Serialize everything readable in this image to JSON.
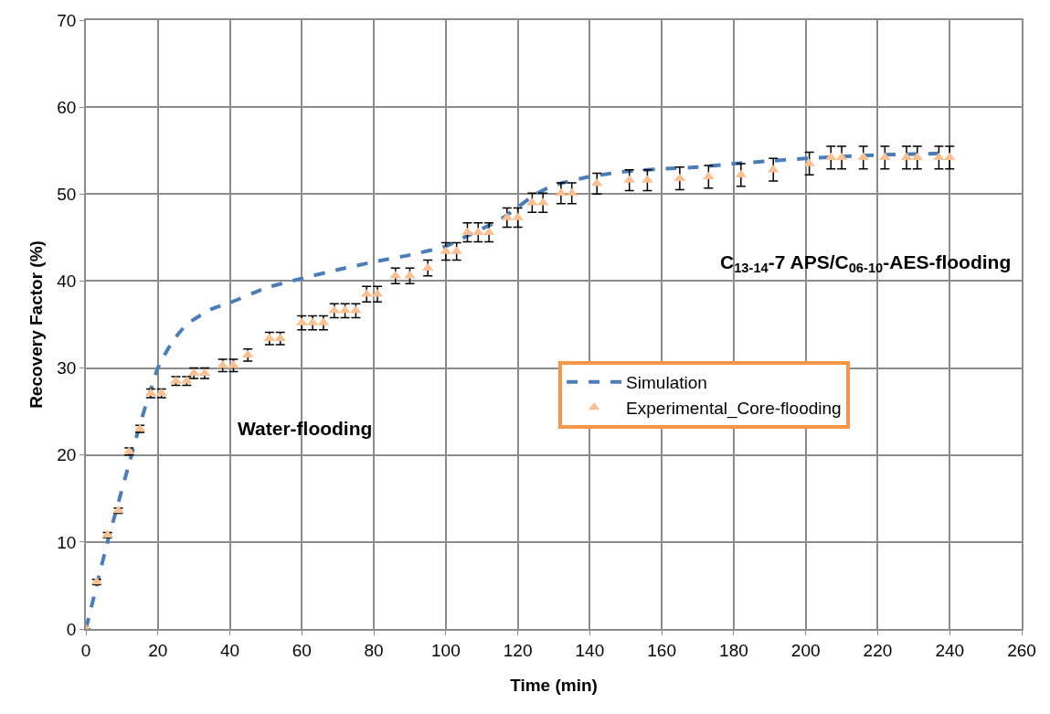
{
  "chart_data": {
    "type": "line",
    "xlabel": "Time (min)",
    "ylabel": "Recovery Factor (%)",
    "xlim": [
      0,
      260
    ],
    "xticks": [
      0,
      20,
      40,
      60,
      80,
      100,
      120,
      140,
      160,
      180,
      200,
      220,
      240,
      260
    ],
    "ylim": [
      0,
      70
    ],
    "yticks": [
      0,
      10,
      20,
      30,
      40,
      50,
      60,
      70
    ],
    "grid": true,
    "legend": "right",
    "annotations": [
      "Water-flooding",
      "C$_{13-14}$-7 APS/C$_{06-10}$-AES-flooding"
    ],
    "series": [
      {
        "name": "Simulation",
        "color": "#4a7ebb",
        "line_style": "dashed",
        "marker": "none",
        "x": [
          0,
          3,
          6,
          9,
          12,
          15,
          18,
          20,
          24,
          28,
          35,
          40,
          50,
          60,
          70,
          80,
          90,
          100,
          105,
          110,
          115,
          120,
          125,
          130,
          140,
          150,
          160,
          170,
          180,
          190,
          200,
          210,
          220,
          230,
          240
        ],
        "values": [
          0,
          5,
          10,
          14.5,
          19,
          23.5,
          27.5,
          30,
          33,
          35,
          36.8,
          37.5,
          39.2,
          40.3,
          41.3,
          42.2,
          43,
          44,
          45,
          46,
          47,
          48.5,
          50,
          51,
          52,
          52.6,
          52.9,
          53.1,
          53.5,
          53.8,
          54.1,
          54.3,
          54.5,
          54.6,
          54.7
        ]
      },
      {
        "name": "Experimental_Core-flooding",
        "type": "scatter",
        "color": "#fac090",
        "marker": "triangle",
        "x": [
          0,
          3,
          6,
          9,
          12,
          15,
          18,
          21,
          25,
          28,
          30,
          33,
          38,
          41,
          45,
          51,
          54,
          60,
          63,
          66,
          69,
          72,
          75,
          78,
          81,
          86,
          90,
          95,
          100,
          103,
          106,
          109,
          112,
          117,
          120,
          124,
          127,
          132,
          135,
          142,
          151,
          156,
          165,
          173,
          182,
          191,
          201,
          207,
          210,
          216,
          222,
          228,
          231,
          237,
          240
        ],
        "values": [
          0,
          5.4,
          10.8,
          13.6,
          20.4,
          23,
          27.1,
          27.1,
          28.5,
          28.5,
          29.4,
          29.4,
          30.3,
          30.3,
          31.5,
          33.4,
          33.4,
          35.2,
          35.2,
          35.2,
          36.6,
          36.6,
          36.6,
          38.5,
          38.5,
          40.6,
          40.6,
          41.5,
          43.4,
          43.4,
          45.6,
          45.6,
          45.6,
          47.3,
          47.3,
          49,
          49,
          50.1,
          50.1,
          51.2,
          51.6,
          51.6,
          51.8,
          52,
          52.2,
          52.8,
          53.5,
          54.2,
          54.2,
          54.2,
          54.2,
          54.2,
          54.2,
          54.2,
          54.2
        ],
        "errors": [
          null,
          0.3,
          0.3,
          0.3,
          0.4,
          0.4,
          0.5,
          0.5,
          0.5,
          0.5,
          0.6,
          0.6,
          0.7,
          0.7,
          0.7,
          0.7,
          0.7,
          0.8,
          0.8,
          0.8,
          0.8,
          0.8,
          0.8,
          0.9,
          0.9,
          0.9,
          0.9,
          0.9,
          1,
          1,
          1.1,
          1.1,
          1.1,
          1.1,
          1.1,
          1.1,
          1.1,
          1.2,
          1.2,
          1.2,
          1.2,
          1.2,
          1.3,
          1.3,
          1.3,
          1.3,
          1.3,
          1.3,
          1.3,
          1.3,
          1.3,
          1.3,
          1.3,
          1.3,
          1.3
        ]
      }
    ]
  }
}
